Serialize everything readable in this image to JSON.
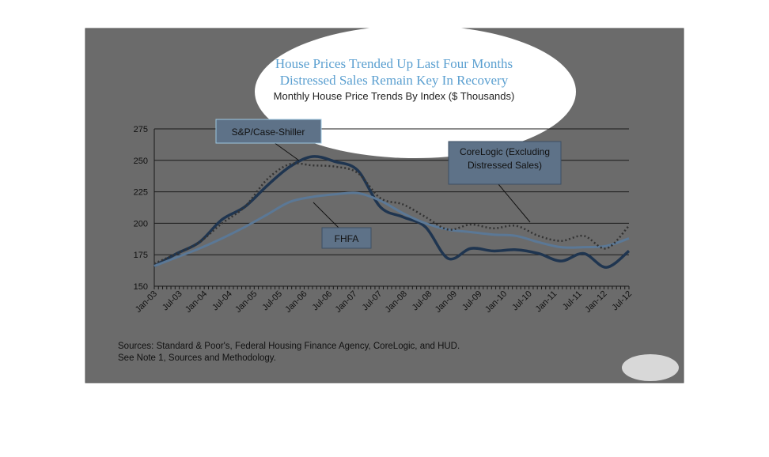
{
  "chart_data": {
    "type": "line",
    "title": "House Prices Trended Up Last Four Months",
    "subtitle": "Distressed Sales Remain Key In Recovery",
    "caption": "Monthly House Price Trends By Index ($ Thousands)",
    "ylim": [
      150,
      275
    ],
    "yticks": [
      "150",
      "175",
      "200",
      "225",
      "250",
      "275"
    ],
    "x_tick_labels": [
      "Jan-03",
      "Jul-03",
      "Jan-04",
      "Jul-04",
      "Jan-05",
      "Jul-05",
      "Jan-06",
      "Jul-06",
      "Jan-07",
      "Jul-07",
      "Jan-08",
      "Jul-08",
      "Jan-09",
      "Jul-09",
      "Jan-10",
      "Jul-10",
      "Jan-11",
      "Jul-11",
      "Jan-12",
      "Jul-12"
    ],
    "series": [
      {
        "name": "S&P/Case-Shiller",
        "color": "#1f3550",
        "style": "solid-thick",
        "values": [
          166,
          176,
          185,
          203,
          213,
          230,
          245,
          253,
          249,
          242,
          213,
          205,
          197,
          172,
          180,
          178,
          179,
          176,
          170,
          176,
          165,
          178
        ]
      },
      {
        "name": "FHFA",
        "color": "#5b7896",
        "style": "solid",
        "values": [
          166,
          173,
          180,
          188,
          197,
          207,
          217,
          221,
          223,
          224,
          218,
          208,
          200,
          195,
          193,
          191,
          190,
          185,
          181,
          181,
          182,
          188
        ]
      },
      {
        "name": "CoreLogic (Excluding Distressed Sales)",
        "color": "#333333",
        "style": "dotted",
        "values": [
          168,
          176,
          185,
          200,
          213,
          235,
          247,
          246,
          245,
          240,
          220,
          215,
          205,
          195,
          199,
          196,
          198,
          190,
          186,
          190,
          180,
          198
        ]
      }
    ],
    "annotations": [
      "S&P/Case-Shiller",
      "FHFA",
      "CoreLogic (Excluding Distressed Sales)"
    ],
    "source_lines": [
      "Sources:  Standard & Poor's, Federal Housing Finance Agency, CoreLogic, and HUD.",
      "See Note 1, Sources and Methodology."
    ],
    "grid": true
  },
  "colors": {
    "panel": "#6b6b6b",
    "spotlight": "#ffffff"
  },
  "callouts": {
    "sp": "S&P/Case-Shiller",
    "fhfa": "FHFA",
    "corelogic_line1": "CoreLogic (Excluding",
    "corelogic_line2": "Distressed Sales)"
  }
}
